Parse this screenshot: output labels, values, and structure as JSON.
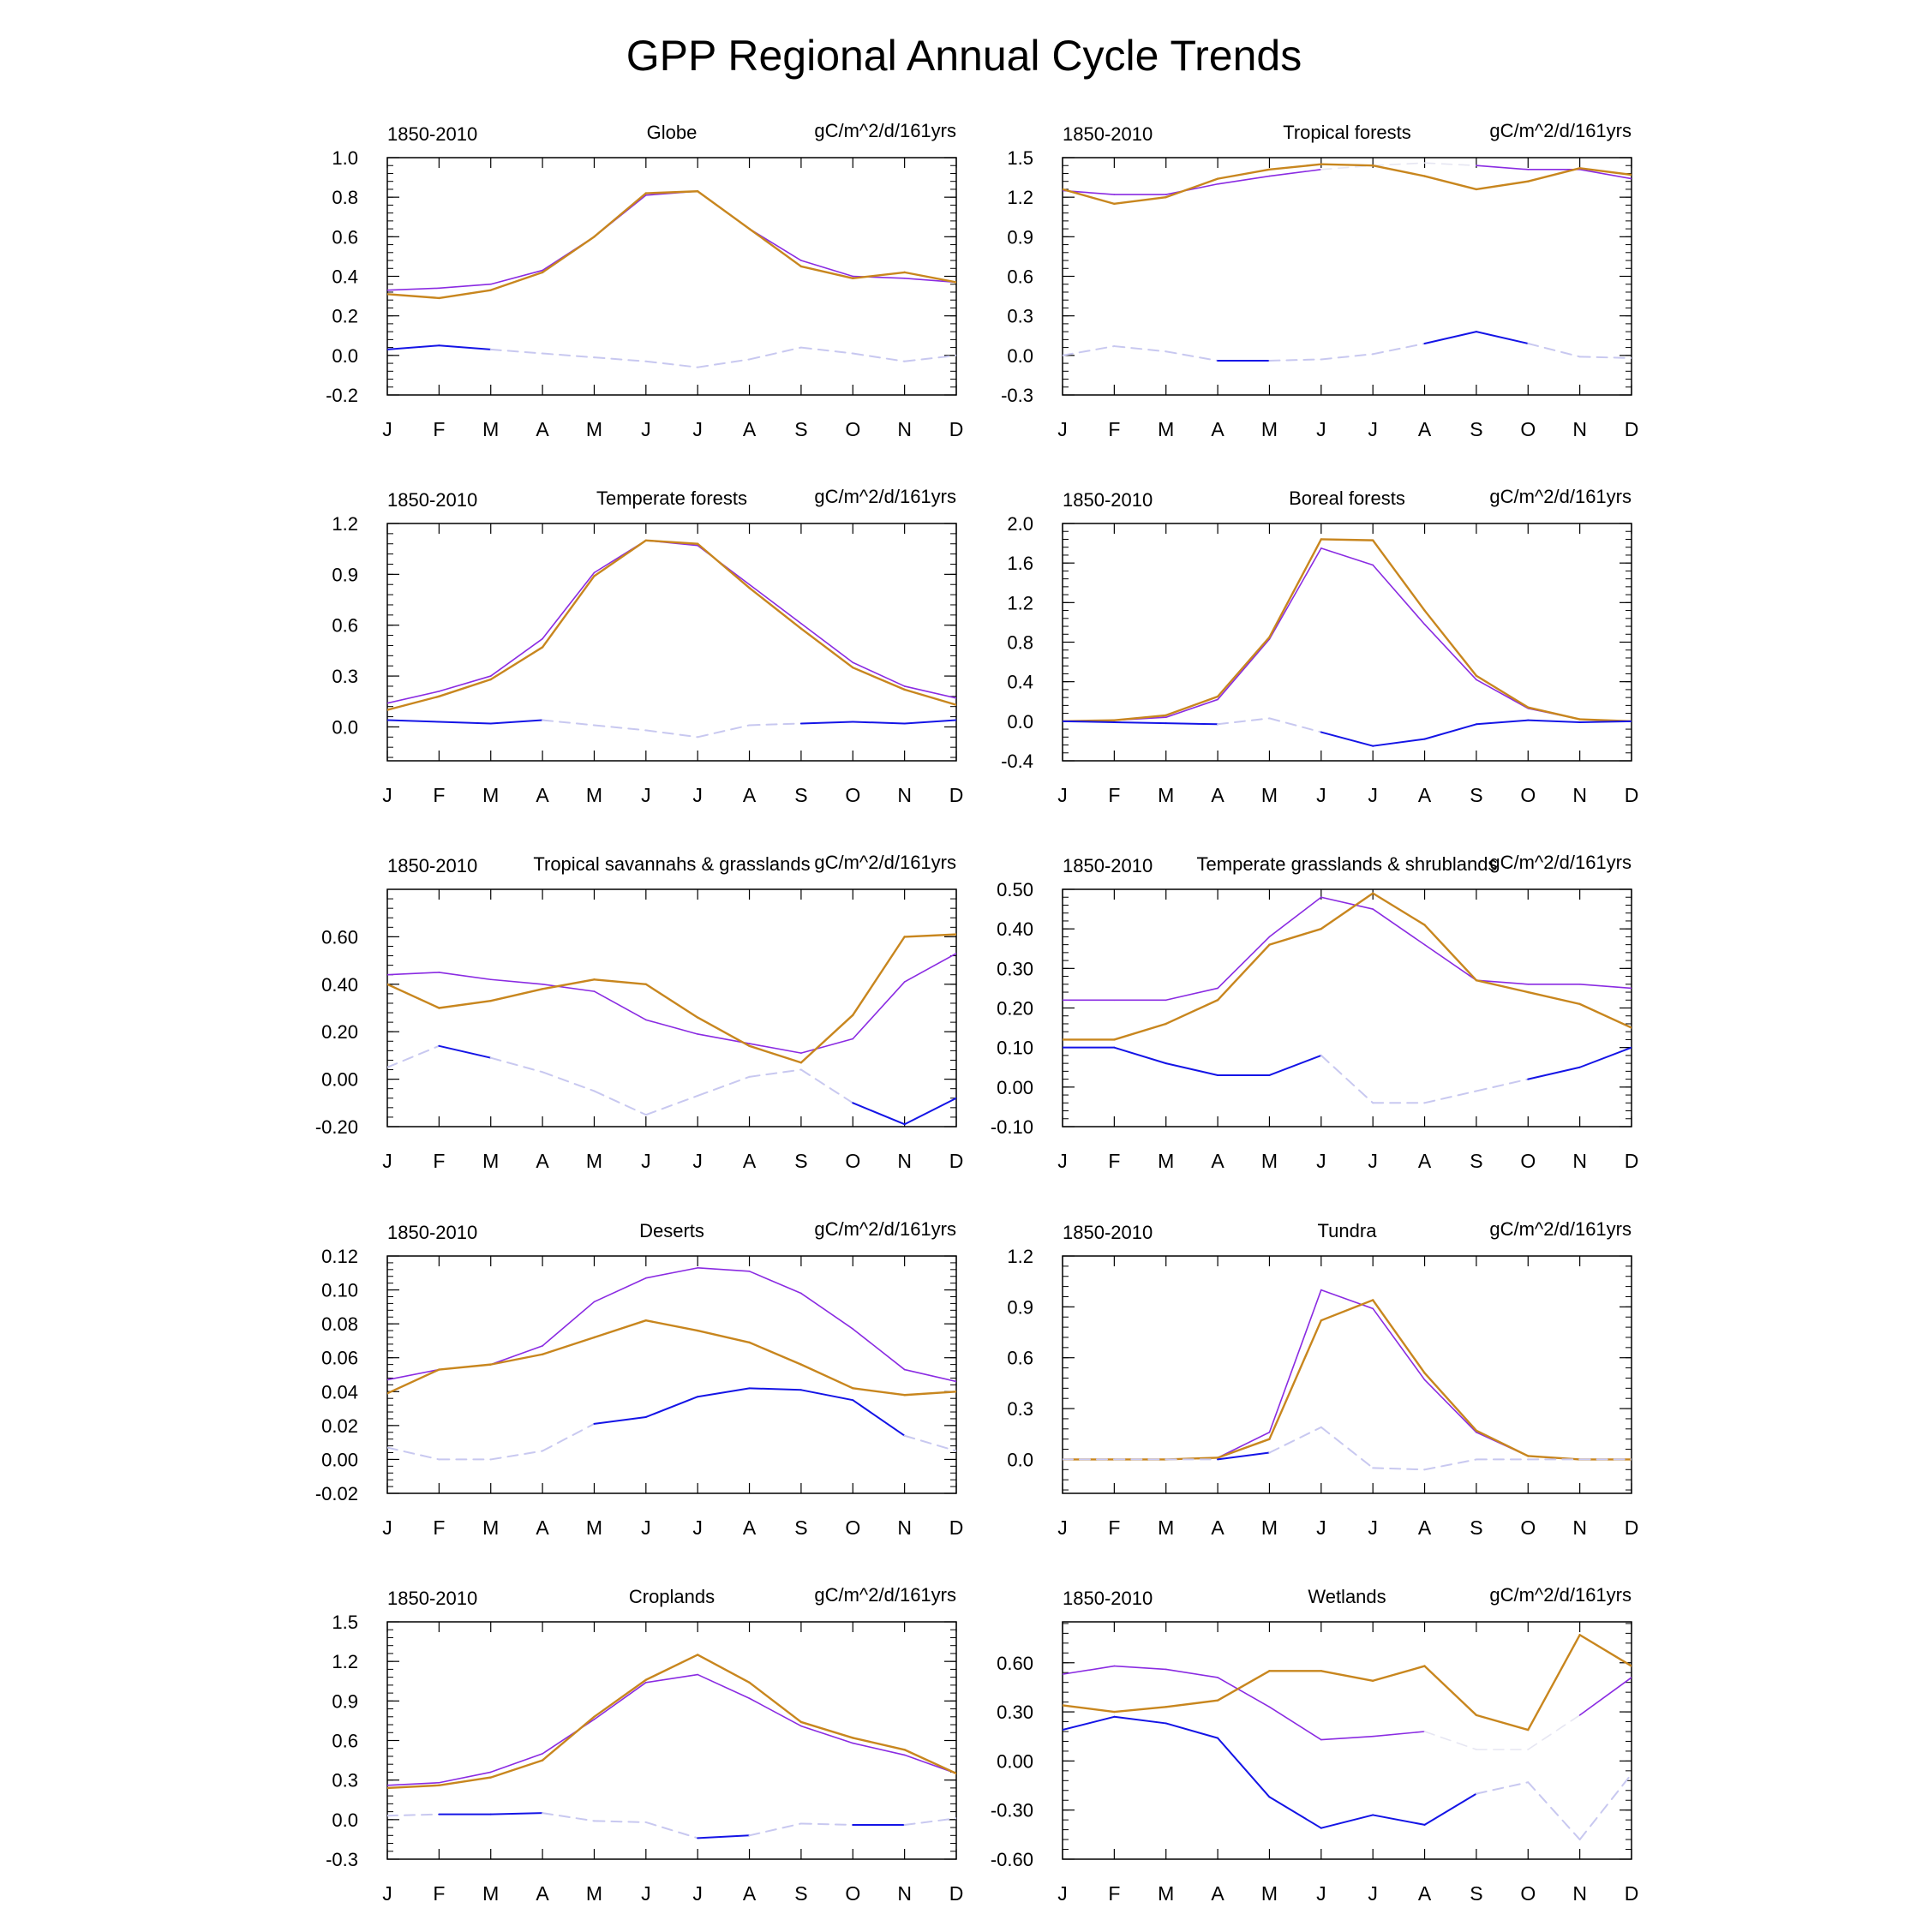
{
  "figure": {
    "title": "GPP Regional Annual Cycle Trends",
    "colors": {
      "purple": "#8a2be2",
      "orange": "#c8861e",
      "blue": "#1414e6",
      "blue_dashed": "#c8c8f0",
      "axis": "#000000"
    }
  },
  "chart_data": [
    {
      "type": "line",
      "title": "Globe",
      "left_label": "1850-2010",
      "right_label": "gC/m^2/d/161yrs",
      "categories": [
        "J",
        "F",
        "M",
        "A",
        "M",
        "J",
        "J",
        "A",
        "S",
        "O",
        "N",
        "D"
      ],
      "ylim": [
        -0.2,
        1.0
      ],
      "yticks": [
        "-0.2",
        "0.0",
        "0.2",
        "0.4",
        "0.6",
        "0.8",
        "1.0"
      ],
      "series": [
        {
          "color": "purple",
          "values": [
            0.33,
            0.34,
            0.36,
            0.43,
            0.6,
            0.81,
            0.83,
            0.64,
            0.48,
            0.4,
            0.39,
            0.37
          ]
        },
        {
          "color": "orange",
          "values": [
            0.31,
            0.29,
            0.33,
            0.42,
            0.6,
            0.82,
            0.83,
            0.64,
            0.45,
            0.39,
            0.42,
            0.37
          ]
        },
        {
          "color": "blue",
          "values": [
            0.03,
            0.05,
            0.03,
            0.01,
            -0.01,
            -0.03,
            -0.06,
            -0.02,
            0.04,
            0.01,
            -0.03,
            0.0
          ],
          "solid": [
            1,
            1,
            1,
            0,
            0,
            0,
            0,
            0,
            0,
            0,
            0,
            0
          ]
        }
      ]
    },
    {
      "type": "line",
      "title": "Tropical forests",
      "left_label": "1850-2010",
      "right_label": "gC/m^2/d/161yrs",
      "categories": [
        "J",
        "F",
        "M",
        "A",
        "M",
        "J",
        "J",
        "A",
        "S",
        "O",
        "N",
        "D"
      ],
      "ylim": [
        -0.3,
        1.5
      ],
      "yticks": [
        "-0.3",
        "0.0",
        "0.3",
        "0.6",
        "0.9",
        "1.2",
        "1.5"
      ],
      "series": [
        {
          "color": "purple",
          "values": [
            1.25,
            1.22,
            1.22,
            1.3,
            1.36,
            1.41,
            1.44,
            1.46,
            1.44,
            1.41,
            1.41,
            1.34
          ],
          "solid": [
            1,
            1,
            1,
            1,
            1,
            1,
            0,
            0,
            1,
            1,
            1,
            1
          ]
        },
        {
          "color": "orange",
          "values": [
            1.26,
            1.15,
            1.2,
            1.34,
            1.41,
            1.45,
            1.44,
            1.36,
            1.26,
            1.32,
            1.42,
            1.37
          ]
        },
        {
          "color": "blue",
          "values": [
            0.0,
            0.07,
            0.03,
            -0.04,
            -0.04,
            -0.03,
            0.01,
            0.09,
            0.18,
            0.09,
            -0.01,
            -0.02
          ],
          "solid": [
            0,
            0,
            0,
            1,
            1,
            0,
            0,
            1,
            1,
            1,
            0,
            0
          ]
        }
      ]
    },
    {
      "type": "line",
      "title": "Temperate forests",
      "left_label": "1850-2010",
      "right_label": "gC/m^2/d/161yrs",
      "categories": [
        "J",
        "F",
        "M",
        "A",
        "M",
        "J",
        "J",
        "A",
        "S",
        "O",
        "N",
        "D"
      ],
      "ylim": [
        -0.2,
        1.2
      ],
      "yticks": [
        "0.0",
        "0.3",
        "0.6",
        "0.9",
        "1.2"
      ],
      "series": [
        {
          "color": "purple",
          "values": [
            0.14,
            0.21,
            0.3,
            0.52,
            0.91,
            1.1,
            1.07,
            0.84,
            0.61,
            0.38,
            0.24,
            0.17
          ]
        },
        {
          "color": "orange",
          "values": [
            0.1,
            0.18,
            0.28,
            0.47,
            0.89,
            1.1,
            1.08,
            0.82,
            0.58,
            0.35,
            0.22,
            0.13
          ]
        },
        {
          "color": "blue",
          "values": [
            0.04,
            0.03,
            0.02,
            0.04,
            0.01,
            -0.02,
            -0.06,
            0.01,
            0.02,
            0.03,
            0.02,
            0.04
          ],
          "solid": [
            1,
            1,
            1,
            1,
            0,
            0,
            0,
            0,
            1,
            1,
            1,
            1
          ]
        }
      ]
    },
    {
      "type": "line",
      "title": "Boreal forests",
      "left_label": "1850-2010",
      "right_label": "gC/m^2/d/161yrs",
      "categories": [
        "J",
        "F",
        "M",
        "A",
        "M",
        "J",
        "J",
        "A",
        "S",
        "O",
        "N",
        "D"
      ],
      "ylim": [
        -0.4,
        2.0
      ],
      "yticks": [
        "-0.4",
        "0.0",
        "0.4",
        "0.8",
        "1.2",
        "1.6",
        "2.0"
      ],
      "series": [
        {
          "color": "purple",
          "values": [
            0.0,
            0.01,
            0.04,
            0.22,
            0.83,
            1.75,
            1.58,
            0.98,
            0.42,
            0.13,
            0.02,
            0.0
          ]
        },
        {
          "color": "orange",
          "values": [
            0.0,
            0.01,
            0.06,
            0.25,
            0.85,
            1.84,
            1.83,
            1.12,
            0.46,
            0.14,
            0.02,
            0.0
          ]
        },
        {
          "color": "blue",
          "values": [
            0.0,
            -0.01,
            -0.02,
            -0.03,
            0.03,
            -0.11,
            -0.25,
            -0.18,
            -0.03,
            0.01,
            -0.01,
            0.0
          ],
          "solid": [
            1,
            1,
            1,
            1,
            0,
            1,
            1,
            1,
            1,
            1,
            1,
            1
          ]
        }
      ]
    },
    {
      "type": "line",
      "title": "Tropical savannahs & grasslands",
      "left_label": "1850-2010",
      "right_label": "gC/m^2/d/161yrs",
      "categories": [
        "J",
        "F",
        "M",
        "A",
        "M",
        "J",
        "J",
        "A",
        "S",
        "O",
        "N",
        "D"
      ],
      "ylim": [
        -0.2,
        0.8
      ],
      "yticks": [
        "-0.20",
        "0.00",
        "0.20",
        "0.40",
        "0.60"
      ],
      "series": [
        {
          "color": "purple",
          "values": [
            0.44,
            0.45,
            0.42,
            0.4,
            0.37,
            0.25,
            0.19,
            0.15,
            0.11,
            0.17,
            0.41,
            0.53
          ]
        },
        {
          "color": "orange",
          "values": [
            0.4,
            0.3,
            0.33,
            0.38,
            0.42,
            0.4,
            0.26,
            0.14,
            0.07,
            0.27,
            0.6,
            0.61
          ]
        },
        {
          "color": "blue",
          "values": [
            0.05,
            0.14,
            0.09,
            0.03,
            -0.05,
            -0.15,
            -0.07,
            0.01,
            0.04,
            -0.1,
            -0.19,
            -0.08
          ],
          "solid": [
            0,
            1,
            1,
            0,
            0,
            0,
            0,
            0,
            0,
            1,
            1,
            1
          ]
        }
      ]
    },
    {
      "type": "line",
      "title": "Temperate grasslands & shrublands",
      "left_label": "1850-2010",
      "right_label": "gC/m^2/d/161yrs",
      "categories": [
        "J",
        "F",
        "M",
        "A",
        "M",
        "J",
        "J",
        "A",
        "S",
        "O",
        "N",
        "D"
      ],
      "ylim": [
        -0.1,
        0.5
      ],
      "yticks": [
        "-0.10",
        "0.00",
        "0.10",
        "0.20",
        "0.30",
        "0.40",
        "0.50"
      ],
      "series": [
        {
          "color": "purple",
          "values": [
            0.22,
            0.22,
            0.22,
            0.25,
            0.38,
            0.48,
            0.45,
            0.36,
            0.27,
            0.26,
            0.26,
            0.25
          ]
        },
        {
          "color": "orange",
          "values": [
            0.12,
            0.12,
            0.16,
            0.22,
            0.36,
            0.4,
            0.49,
            0.41,
            0.27,
            0.24,
            0.21,
            0.15
          ]
        },
        {
          "color": "blue",
          "values": [
            0.1,
            0.1,
            0.06,
            0.03,
            0.03,
            0.08,
            -0.04,
            -0.04,
            -0.01,
            0.02,
            0.05,
            0.1
          ],
          "solid": [
            1,
            1,
            1,
            1,
            1,
            1,
            0,
            0,
            0,
            1,
            1,
            1
          ]
        }
      ]
    },
    {
      "type": "line",
      "title": "Deserts",
      "left_label": "1850-2010",
      "right_label": "gC/m^2/d/161yrs",
      "categories": [
        "J",
        "F",
        "M",
        "A",
        "M",
        "J",
        "J",
        "A",
        "S",
        "O",
        "N",
        "D"
      ],
      "ylim": [
        -0.02,
        0.12
      ],
      "yticks": [
        "-0.02",
        "0.00",
        "0.02",
        "0.04",
        "0.06",
        "0.08",
        "0.10",
        "0.12"
      ],
      "series": [
        {
          "color": "purple",
          "values": [
            0.047,
            0.053,
            0.056,
            0.067,
            0.093,
            0.107,
            0.113,
            0.111,
            0.098,
            0.077,
            0.053,
            0.046
          ]
        },
        {
          "color": "orange",
          "values": [
            0.039,
            0.053,
            0.056,
            0.062,
            0.072,
            0.082,
            0.076,
            0.069,
            0.056,
            0.042,
            0.038,
            0.04
          ]
        },
        {
          "color": "blue",
          "values": [
            0.007,
            0.0,
            0.0,
            0.005,
            0.021,
            0.025,
            0.037,
            0.042,
            0.041,
            0.035,
            0.014,
            0.005
          ],
          "solid": [
            0,
            0,
            0,
            0,
            1,
            1,
            1,
            1,
            1,
            1,
            1,
            0
          ]
        }
      ]
    },
    {
      "type": "line",
      "title": "Tundra",
      "left_label": "1850-2010",
      "right_label": "gC/m^2/d/161yrs",
      "categories": [
        "J",
        "F",
        "M",
        "A",
        "M",
        "J",
        "J",
        "A",
        "S",
        "O",
        "N",
        "D"
      ],
      "ylim": [
        -0.2,
        1.2
      ],
      "yticks": [
        "0.0",
        "0.3",
        "0.6",
        "0.9",
        "1.2"
      ],
      "series": [
        {
          "color": "purple",
          "values": [
            0.0,
            0.0,
            0.0,
            0.01,
            0.16,
            1.0,
            0.89,
            0.47,
            0.16,
            0.02,
            0.0,
            0.0
          ]
        },
        {
          "color": "orange",
          "values": [
            0.0,
            0.0,
            0.0,
            0.01,
            0.12,
            0.82,
            0.94,
            0.51,
            0.17,
            0.02,
            0.0,
            0.0
          ]
        },
        {
          "color": "blue",
          "values": [
            0.0,
            0.0,
            0.0,
            0.0,
            0.04,
            0.19,
            -0.05,
            -0.06,
            0.0,
            0.0,
            0.0,
            0.0
          ],
          "solid": [
            0,
            0,
            0,
            1,
            1,
            0,
            0,
            0,
            0,
            0,
            0,
            0
          ]
        }
      ]
    },
    {
      "type": "line",
      "title": "Croplands",
      "left_label": "1850-2010",
      "right_label": "gC/m^2/d/161yrs",
      "categories": [
        "J",
        "F",
        "M",
        "A",
        "M",
        "J",
        "J",
        "A",
        "S",
        "O",
        "N",
        "D"
      ],
      "ylim": [
        -0.3,
        1.5
      ],
      "yticks": [
        "-0.3",
        "0.0",
        "0.3",
        "0.6",
        "0.9",
        "1.2",
        "1.5"
      ],
      "series": [
        {
          "color": "purple",
          "values": [
            0.26,
            0.28,
            0.36,
            0.5,
            0.76,
            1.04,
            1.1,
            0.92,
            0.71,
            0.58,
            0.49,
            0.35
          ]
        },
        {
          "color": "orange",
          "values": [
            0.24,
            0.26,
            0.32,
            0.45,
            0.78,
            1.06,
            1.25,
            1.04,
            0.74,
            0.62,
            0.53,
            0.35
          ]
        },
        {
          "color": "blue",
          "values": [
            0.03,
            0.04,
            0.04,
            0.05,
            -0.01,
            -0.02,
            -0.14,
            -0.12,
            -0.03,
            -0.04,
            -0.04,
            0.01
          ],
          "solid": [
            0,
            1,
            1,
            1,
            0,
            0,
            1,
            1,
            0,
            1,
            1,
            0
          ]
        }
      ]
    },
    {
      "type": "line",
      "title": "Wetlands",
      "left_label": "1850-2010",
      "right_label": "gC/m^2/d/161yrs",
      "categories": [
        "J",
        "F",
        "M",
        "A",
        "M",
        "J",
        "J",
        "A",
        "S",
        "O",
        "N",
        "D"
      ],
      "ylim": [
        -0.6,
        0.85
      ],
      "yticks": [
        "-0.60",
        "-0.30",
        "0.00",
        "0.30",
        "0.60"
      ],
      "series": [
        {
          "color": "purple",
          "values": [
            0.53,
            0.58,
            0.56,
            0.51,
            0.33,
            0.13,
            0.15,
            0.18,
            0.07,
            0.07,
            0.28,
            0.51
          ],
          "solid": [
            1,
            1,
            1,
            1,
            1,
            1,
            1,
            1,
            0,
            0,
            1,
            1
          ]
        },
        {
          "color": "orange",
          "values": [
            0.34,
            0.3,
            0.33,
            0.37,
            0.55,
            0.55,
            0.49,
            0.58,
            0.28,
            0.19,
            0.77,
            0.58
          ]
        },
        {
          "color": "blue",
          "values": [
            0.19,
            0.27,
            0.23,
            0.14,
            -0.22,
            -0.41,
            -0.33,
            -0.39,
            -0.2,
            -0.13,
            -0.48,
            -0.08
          ],
          "solid": [
            1,
            1,
            1,
            1,
            1,
            1,
            1,
            1,
            1,
            0,
            0,
            0
          ]
        }
      ]
    }
  ]
}
